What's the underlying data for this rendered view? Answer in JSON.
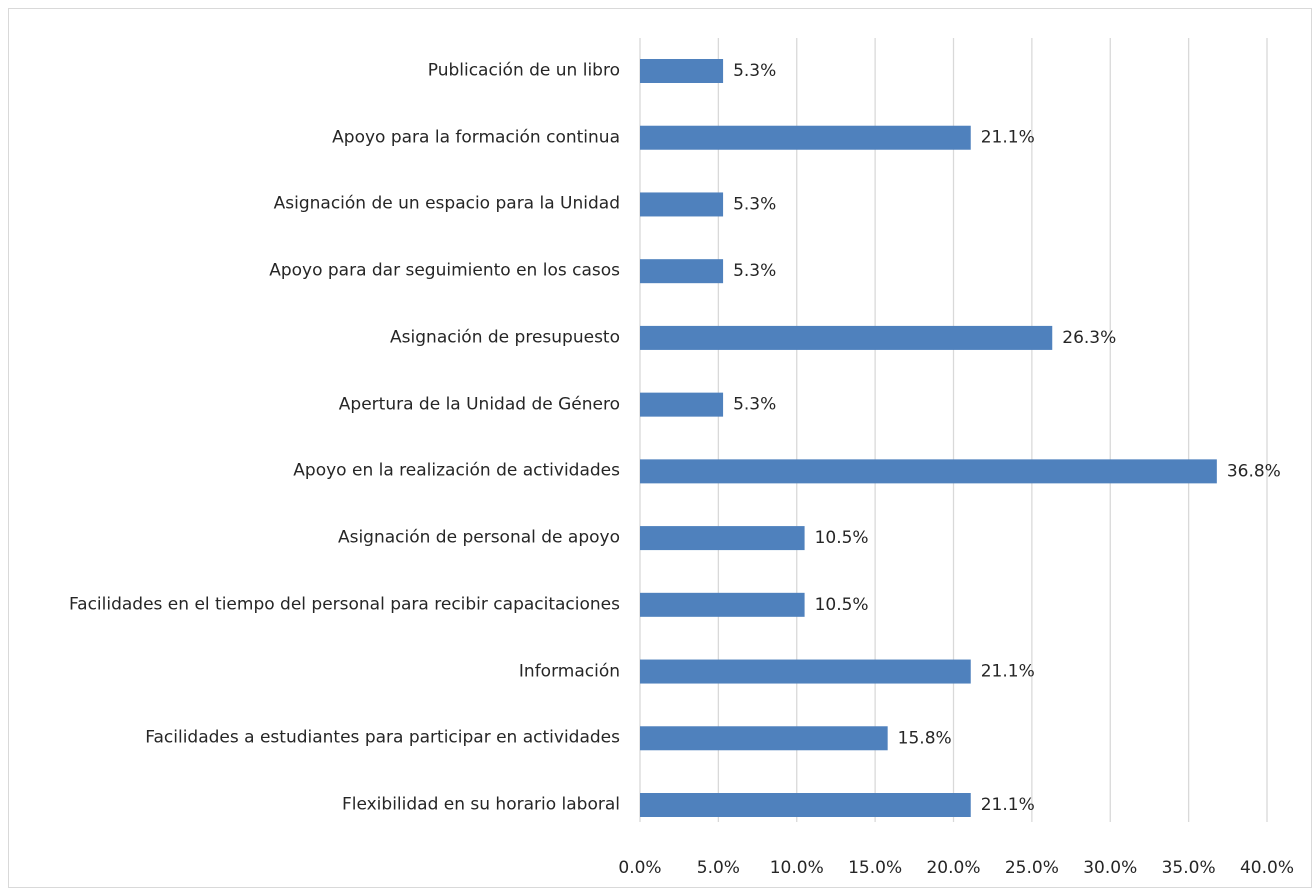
{
  "chart_data": {
    "type": "bar",
    "orientation": "horizontal",
    "categories": [
      "Publicación de un libro",
      "Apoyo para la formación continua",
      "Asignación de un espacio para la Unidad",
      "Apoyo para dar seguimiento en los casos",
      "Asignación de presupuesto",
      "Apertura de la Unidad de Género",
      "Apoyo en la realización de actividades",
      "Asignación de personal de apoyo",
      "Facilidades en el tiempo del personal para recibir capacitaciones",
      "Información",
      "Facilidades a estudiantes para participar en actividades",
      "Flexibilidad en su horario laboral"
    ],
    "values": [
      5.3,
      21.1,
      5.3,
      5.3,
      26.3,
      5.3,
      36.8,
      10.5,
      10.5,
      21.1,
      15.8,
      21.1
    ],
    "value_labels": [
      "5.3%",
      "21.1%",
      "5.3%",
      "5.3%",
      "26.3%",
      "5.3%",
      "36.8%",
      "10.5%",
      "10.5%",
      "21.1%",
      "15.8%",
      "21.1%"
    ],
    "color": "#4f81bd",
    "xlim": [
      0,
      40
    ],
    "xticks": [
      {
        "value": 0,
        "label": "0.0%"
      },
      {
        "value": 5,
        "label": "5.0%"
      },
      {
        "value": 10,
        "label": "10.0%"
      },
      {
        "value": 15,
        "label": "15.0%"
      },
      {
        "value": 20,
        "label": "20.0%"
      },
      {
        "value": 25,
        "label": "25.0%"
      },
      {
        "value": 30,
        "label": "30.0%"
      },
      {
        "value": 35,
        "label": "35.0%"
      },
      {
        "value": 40,
        "label": "40.0%"
      }
    ],
    "grid": true
  }
}
